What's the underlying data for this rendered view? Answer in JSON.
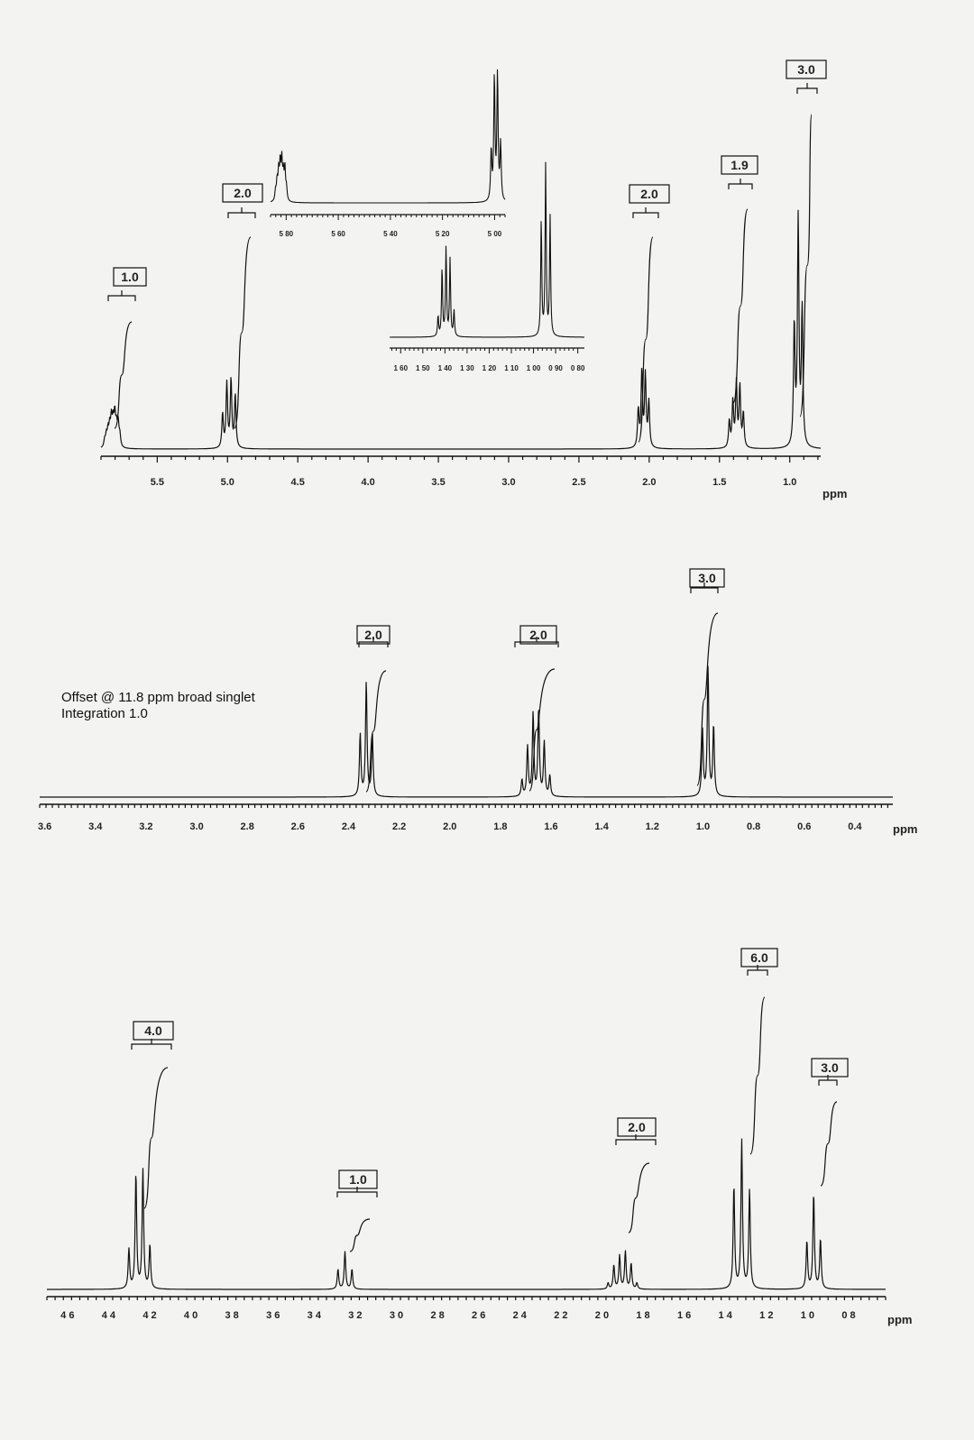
{
  "chart_data": [
    {
      "type": "line",
      "title": "",
      "xlabel": "ppm",
      "xlim": [
        5.9,
        0.78
      ],
      "ylim": [
        0,
        1
      ],
      "x_ticks": [
        "5.5",
        "5.0",
        "4.5",
        "4.0",
        "3.5",
        "3.0",
        "2.5",
        "2.0",
        "1.5",
        "1.0"
      ],
      "peaks": [
        {
          "center": 5.82,
          "spacing": 0.012,
          "lines": 10,
          "heights": [
            0.03,
            0.06,
            0.05,
            0.08,
            0.06,
            0.07,
            0.05,
            0.04,
            0.03,
            0.02
          ]
        },
        {
          "center": 4.99,
          "spacing": 0.03,
          "lines": 4,
          "heights": [
            0.14,
            0.18,
            0.17,
            0.09
          ]
        },
        {
          "center": 2.04,
          "spacing": 0.025,
          "lines": 4,
          "heights": [
            0.12,
            0.19,
            0.2,
            0.1
          ]
        },
        {
          "center": 1.38,
          "spacing": 0.025,
          "lines": 5,
          "heights": [
            0.09,
            0.16,
            0.17,
            0.12,
            0.07
          ]
        },
        {
          "center": 0.94,
          "spacing": 0.028,
          "lines": 3,
          "heights": [
            0.36,
            0.6,
            0.32
          ]
        }
      ],
      "integrals": [
        "1.0",
        "2.0",
        "2.0",
        "1.9",
        "3.0"
      ],
      "insets": [
        {
          "x_ticks": [
            "5 80",
            "5 60",
            "5 40",
            "5 20",
            "5 00"
          ]
        },
        {
          "x_ticks": [
            "1 60",
            "1 50",
            "1 40",
            "1 30",
            "1 20",
            "1 10",
            "1 00",
            "0 90",
            "0 80"
          ]
        }
      ]
    },
    {
      "type": "line",
      "title": "",
      "xlabel": "ppm",
      "xlim": [
        3.62,
        0.25
      ],
      "ylim": [
        0,
        1
      ],
      "x_ticks": [
        "3.6",
        "3.4",
        "3.2",
        "3.0",
        "2.8",
        "2.6",
        "2.4",
        "2.2",
        "2.0",
        "1.8",
        "1.6",
        "1.4",
        "1.2",
        "1.0",
        "0.8",
        "0.6",
        "0.4"
      ],
      "peaks": [
        {
          "center": 2.33,
          "spacing": 0.024,
          "lines": 3,
          "heights": [
            0.3,
            0.55,
            0.3
          ]
        },
        {
          "center": 1.66,
          "spacing": 0.022,
          "lines": 6,
          "heights": [
            0.1,
            0.26,
            0.42,
            0.4,
            0.24,
            0.08
          ]
        },
        {
          "center": 0.98,
          "spacing": 0.022,
          "lines": 3,
          "heights": [
            0.34,
            0.62,
            0.32
          ]
        }
      ],
      "integrals": [
        "2.0",
        "2.0",
        "3.0"
      ],
      "annotations": [
        "Offset @ 11.8 ppm broad singlet",
        "Integration 1.0"
      ]
    },
    {
      "type": "line",
      "title": "",
      "xlabel": "ppm",
      "xlim": [
        4.7,
        0.62
      ],
      "ylim": [
        0,
        1
      ],
      "x_ticks": [
        "4 6",
        "4 4",
        "4 2",
        "4 0",
        "3 8",
        "3 6",
        "3 4",
        "3 2",
        "3 0",
        "2 8",
        "2 6",
        "2 4",
        "2 2",
        "2 0",
        "1 8",
        "1 6",
        "1 4",
        "1 2",
        "1 0",
        "0 8"
      ],
      "peaks": [
        {
          "center": 4.25,
          "spacing": 0.034,
          "lines": 4,
          "heights": [
            0.22,
            0.6,
            0.58,
            0.2
          ]
        },
        {
          "center": 3.25,
          "spacing": 0.034,
          "lines": 3,
          "heights": [
            0.1,
            0.19,
            0.1
          ]
        },
        {
          "center": 1.9,
          "spacing": 0.028,
          "lines": 6,
          "heights": [
            0.03,
            0.13,
            0.19,
            0.17,
            0.12,
            0.03
          ]
        },
        {
          "center": 1.32,
          "spacing": 0.038,
          "lines": 3,
          "heights": [
            0.5,
            0.75,
            0.52
          ]
        },
        {
          "center": 0.97,
          "spacing": 0.033,
          "lines": 3,
          "heights": [
            0.25,
            0.48,
            0.24
          ]
        }
      ],
      "integrals": [
        "4.0",
        "1.0",
        "2.0",
        "6.0",
        "3.0"
      ]
    }
  ]
}
